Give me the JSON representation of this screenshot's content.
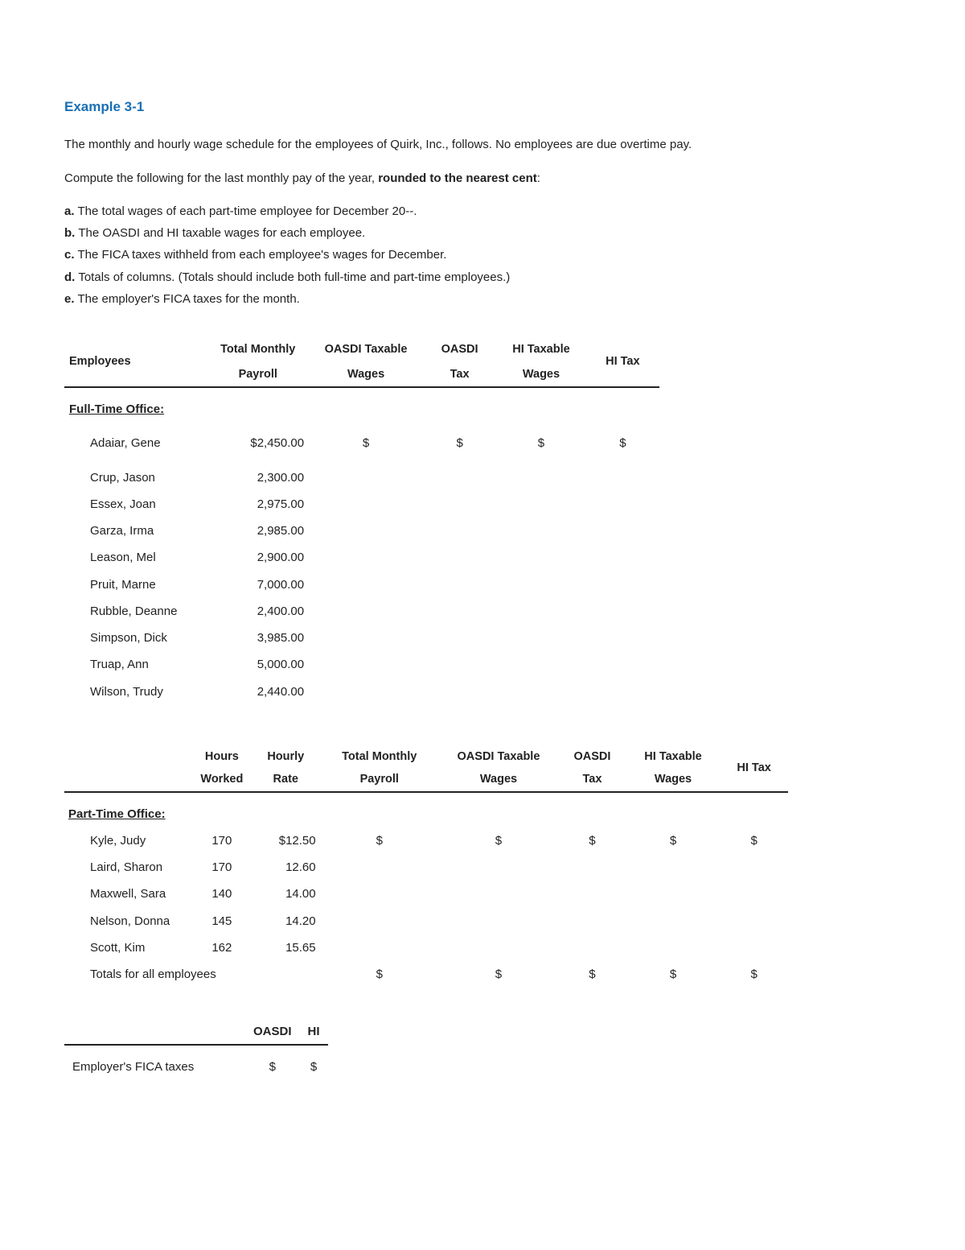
{
  "title": "Example 3-1",
  "intro1": "The monthly and hourly wage schedule for the employees of Quirk, Inc., follows. No employees are due overtime pay.",
  "intro2_prefix": "Compute the following for the last monthly pay of the year, ",
  "intro2_bold": "rounded to the nearest cent",
  "intro2_suffix": ":",
  "tasks": {
    "a": {
      "letter": "a.",
      "text": "The total wages of each part-time employee for December 20--."
    },
    "b": {
      "letter": "b.",
      "text": "The OASDI and HI taxable wages for each employee."
    },
    "c": {
      "letter": "c.",
      "text": "The FICA taxes withheld from each employee's wages for December."
    },
    "d": {
      "letter": "d.",
      "text": "Totals of columns. (Totals should include both full-time and part-time employees.)"
    },
    "e": {
      "letter": "e.",
      "text": "The employer's FICA taxes for the month."
    }
  },
  "ft": {
    "h_emp": "Employees",
    "h_tmp_1": "Total Monthly",
    "h_tmp_2": "Payroll",
    "h_otw_1": "OASDI Taxable",
    "h_otw_2": "Wages",
    "h_ot_1": "OASDI",
    "h_ot_2": "Tax",
    "h_htw_1": "HI Taxable",
    "h_htw_2": "Wages",
    "h_ht": "HI Tax",
    "section": "Full-Time Office:",
    "rows": [
      {
        "name": "Adaiar, Gene",
        "pay": "$2,450.00"
      },
      {
        "name": "Crup, Jason",
        "pay": "2,300.00"
      },
      {
        "name": "Essex, Joan",
        "pay": "2,975.00"
      },
      {
        "name": "Garza, Irma",
        "pay": "2,985.00"
      },
      {
        "name": "Leason, Mel",
        "pay": "2,900.00"
      },
      {
        "name": "Pruit, Marne",
        "pay": "7,000.00"
      },
      {
        "name": "Rubble, Deanne",
        "pay": "2,400.00"
      },
      {
        "name": "Simpson, Dick",
        "pay": "3,985.00"
      },
      {
        "name": "Truap, Ann",
        "pay": "5,000.00"
      },
      {
        "name": "Wilson, Trudy",
        "pay": "2,440.00"
      }
    ],
    "dollar": "$"
  },
  "pt": {
    "h_hours_1": "Hours",
    "h_hours_2": "Worked",
    "h_rate_1": "Hourly",
    "h_rate_2": "Rate",
    "h_tmp_1": "Total Monthly",
    "h_tmp_2": "Payroll",
    "h_otw_1": "OASDI Taxable",
    "h_otw_2": "Wages",
    "h_ot_1": "OASDI",
    "h_ot_2": "Tax",
    "h_htw_1": "HI Taxable",
    "h_htw_2": "Wages",
    "h_ht": "HI Tax",
    "section": "Part-Time Office:",
    "rows": [
      {
        "name": "Kyle, Judy",
        "hours": "170",
        "rate": "$12.50"
      },
      {
        "name": "Laird, Sharon",
        "hours": "170",
        "rate": "12.60"
      },
      {
        "name": "Maxwell, Sara",
        "hours": "140",
        "rate": "14.00"
      },
      {
        "name": "Nelson, Donna",
        "hours": "145",
        "rate": "14.20"
      },
      {
        "name": "Scott, Kim",
        "hours": "162",
        "rate": "15.65"
      }
    ],
    "totals_label": "Totals for all employees",
    "dollar": "$"
  },
  "fica": {
    "h_oasdi": "OASDI",
    "h_hi": "HI",
    "label": "Employer's FICA taxes",
    "dollar": "$"
  }
}
